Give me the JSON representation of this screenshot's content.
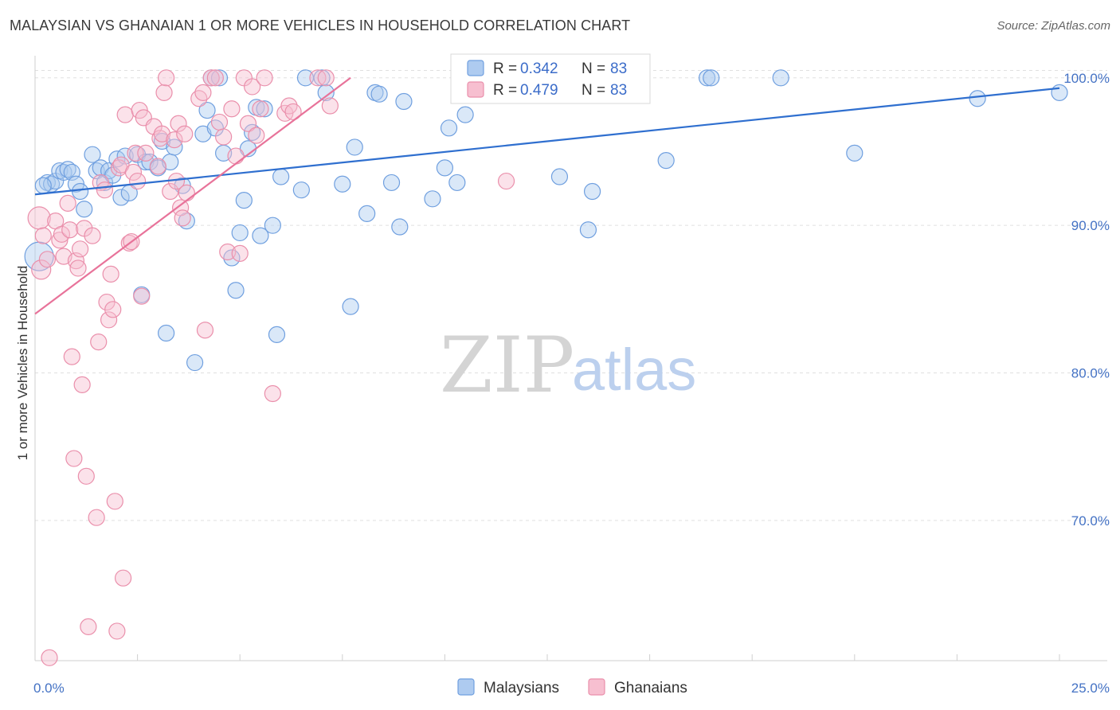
{
  "title": "MALAYSIAN VS GHANAIAN 1 OR MORE VEHICLES IN HOUSEHOLD CORRELATION CHART",
  "source": "Source: ZipAtlas.com",
  "watermark": {
    "zip": "ZIP",
    "atlas": "atlas"
  },
  "colors": {
    "malaysian_fill": "#aecbf0",
    "malaysian_stroke": "#6f9fdf",
    "malaysian_line": "#2f6fcf",
    "ghanaian_fill": "#f7bfd0",
    "ghanaian_stroke": "#ea8fab",
    "ghanaian_line": "#e8739a",
    "tick_text": "#4472c4",
    "grid": "#e0e0e0"
  },
  "legend": {
    "rows": [
      {
        "r_label": "R = ",
        "r_value": "0.342",
        "n_label": "N = ",
        "n_value": "83"
      },
      {
        "r_label": "R = ",
        "r_value": "0.479",
        "n_label": "N = ",
        "n_value": "83"
      }
    ],
    "series_labels": [
      "Malaysians",
      "Ghanaians"
    ]
  },
  "chart_data": {
    "type": "scatter",
    "title": "MALAYSIAN VS GHANAIAN 1 OR MORE VEHICLES IN HOUSEHOLD CORRELATION CHART",
    "xlabel": "",
    "ylabel": "1 or more Vehicles in Household",
    "xlim": [
      0,
      25
    ],
    "ylim": [
      60.5,
      101.5
    ],
    "x_tick_labels": [
      "0.0%",
      "25.0%"
    ],
    "y_ticks": [
      70,
      80,
      90,
      100
    ],
    "y_tick_labels": [
      "70.0%",
      "80.0%",
      "90.0%",
      "100.0%"
    ],
    "grid": true,
    "series": [
      {
        "name": "Malaysians",
        "r": 0.342,
        "n": 83,
        "trendline": {
          "x": [
            0,
            25
          ],
          "y": [
            92.1,
            99.3
          ]
        },
        "points": [
          [
            0.1,
            87.9,
            18
          ],
          [
            0.3,
            92.9,
            10
          ],
          [
            0.4,
            92.8,
            10
          ],
          [
            0.5,
            93.0,
            10
          ],
          [
            0.6,
            93.7,
            10
          ],
          [
            0.7,
            93.6,
            10
          ],
          [
            0.8,
            93.8,
            10
          ],
          [
            0.9,
            93.6,
            10
          ],
          [
            1.0,
            92.8,
            10
          ],
          [
            1.1,
            92.3,
            10
          ],
          [
            1.2,
            91.1,
            10
          ],
          [
            1.4,
            94.8,
            10
          ],
          [
            1.5,
            93.7,
            10
          ],
          [
            1.6,
            93.9,
            10
          ],
          [
            1.7,
            92.9,
            10
          ],
          [
            1.8,
            93.7,
            10
          ],
          [
            1.9,
            93.4,
            10
          ],
          [
            2.0,
            94.5,
            10
          ],
          [
            2.1,
            91.9,
            10
          ],
          [
            2.2,
            94.7,
            10
          ],
          [
            2.3,
            92.2,
            10
          ],
          [
            2.5,
            94.8,
            10
          ],
          [
            2.6,
            85.3,
            10
          ],
          [
            2.7,
            94.3,
            10
          ],
          [
            2.8,
            94.3,
            10
          ],
          [
            3.0,
            93.9,
            10
          ],
          [
            3.1,
            95.7,
            10
          ],
          [
            3.2,
            82.7,
            10
          ],
          [
            3.3,
            94.3,
            10
          ],
          [
            3.4,
            95.3,
            10
          ],
          [
            3.6,
            92.7,
            10
          ],
          [
            3.7,
            90.3,
            10
          ],
          [
            3.9,
            80.7,
            10
          ],
          [
            4.1,
            96.2,
            10
          ],
          [
            4.2,
            97.8,
            10
          ],
          [
            4.3,
            100.0,
            10
          ],
          [
            4.4,
            96.6,
            10
          ],
          [
            4.5,
            100.0,
            10
          ],
          [
            4.6,
            94.9,
            10
          ],
          [
            4.8,
            87.8,
            10
          ],
          [
            4.9,
            85.6,
            10
          ],
          [
            5.0,
            89.5,
            10
          ],
          [
            5.1,
            91.7,
            10
          ],
          [
            5.2,
            95.2,
            10
          ],
          [
            5.3,
            96.3,
            10
          ],
          [
            5.4,
            98.0,
            10
          ],
          [
            5.5,
            89.3,
            10
          ],
          [
            5.6,
            97.9,
            10
          ],
          [
            5.8,
            90.0,
            10
          ],
          [
            5.9,
            82.6,
            10
          ],
          [
            6.0,
            93.3,
            10
          ],
          [
            6.5,
            92.4,
            10
          ],
          [
            6.6,
            100.0,
            10
          ],
          [
            7.0,
            100.0,
            10
          ],
          [
            7.1,
            99.0,
            10
          ],
          [
            7.5,
            92.8,
            10
          ],
          [
            7.7,
            84.5,
            10
          ],
          [
            7.8,
            95.3,
            10
          ],
          [
            8.1,
            90.8,
            10
          ],
          [
            8.3,
            99.0,
            10
          ],
          [
            8.4,
            98.9,
            10
          ],
          [
            8.7,
            92.9,
            10
          ],
          [
            8.9,
            89.9,
            10
          ],
          [
            9.0,
            98.4,
            10
          ],
          [
            9.7,
            91.8,
            10
          ],
          [
            10.0,
            93.9,
            10
          ],
          [
            10.1,
            96.6,
            10
          ],
          [
            10.3,
            92.9,
            10
          ],
          [
            10.5,
            97.5,
            10
          ],
          [
            10.6,
            100.0,
            10
          ],
          [
            11.5,
            100.0,
            10
          ],
          [
            12.8,
            93.3,
            10
          ],
          [
            13.5,
            89.7,
            10
          ],
          [
            13.6,
            92.3,
            10
          ],
          [
            14.7,
            100.0,
            10
          ],
          [
            15.4,
            94.4,
            10
          ],
          [
            16.4,
            100.0,
            10
          ],
          [
            16.5,
            100.0,
            10
          ],
          [
            18.2,
            100.0,
            10
          ],
          [
            20.0,
            94.9,
            10
          ],
          [
            23.0,
            98.6,
            10
          ],
          [
            25.0,
            99.0,
            10
          ],
          [
            0.2,
            92.7,
            10
          ]
        ]
      },
      {
        "name": "Ghanaians",
        "r": 0.479,
        "n": 83,
        "trendline": {
          "x": [
            0,
            7.7
          ],
          "y": [
            84.0,
            100.0
          ]
        },
        "points": [
          [
            0.1,
            90.5,
            14
          ],
          [
            0.15,
            87.0,
            12
          ],
          [
            0.2,
            89.3,
            10
          ],
          [
            0.3,
            87.7,
            10
          ],
          [
            0.35,
            60.7,
            10
          ],
          [
            0.5,
            90.3,
            10
          ],
          [
            0.6,
            89.0,
            10
          ],
          [
            0.65,
            89.4,
            10
          ],
          [
            0.7,
            87.9,
            10
          ],
          [
            0.8,
            91.5,
            10
          ],
          [
            0.85,
            89.7,
            10
          ],
          [
            0.9,
            81.1,
            10
          ],
          [
            0.95,
            74.2,
            10
          ],
          [
            1.0,
            87.6,
            10
          ],
          [
            1.05,
            87.1,
            10
          ],
          [
            1.1,
            88.4,
            10
          ],
          [
            1.15,
            79.2,
            10
          ],
          [
            1.2,
            89.8,
            10
          ],
          [
            1.25,
            73.0,
            10
          ],
          [
            1.3,
            62.8,
            10
          ],
          [
            1.4,
            89.3,
            10
          ],
          [
            1.5,
            70.2,
            10
          ],
          [
            1.55,
            82.1,
            10
          ],
          [
            1.6,
            92.9,
            10
          ],
          [
            1.7,
            92.4,
            10
          ],
          [
            1.75,
            84.8,
            10
          ],
          [
            1.8,
            83.6,
            10
          ],
          [
            1.85,
            86.7,
            10
          ],
          [
            1.9,
            84.3,
            10
          ],
          [
            1.95,
            71.3,
            10
          ],
          [
            2.0,
            62.5,
            10
          ],
          [
            2.05,
            93.9,
            10
          ],
          [
            2.1,
            94.1,
            10
          ],
          [
            2.15,
            66.1,
            10
          ],
          [
            2.2,
            97.5,
            10
          ],
          [
            2.3,
            88.8,
            10
          ],
          [
            2.35,
            88.9,
            10
          ],
          [
            2.4,
            93.6,
            10
          ],
          [
            2.45,
            94.9,
            10
          ],
          [
            2.5,
            93.0,
            10
          ],
          [
            2.55,
            97.8,
            10
          ],
          [
            2.6,
            85.2,
            10
          ],
          [
            2.65,
            97.3,
            10
          ],
          [
            2.7,
            94.9,
            10
          ],
          [
            2.9,
            96.7,
            10
          ],
          [
            3.0,
            94.0,
            10
          ],
          [
            3.05,
            95.9,
            10
          ],
          [
            3.1,
            96.2,
            10
          ],
          [
            3.15,
            99.0,
            10
          ],
          [
            3.2,
            100.0,
            10
          ],
          [
            3.3,
            92.3,
            10
          ],
          [
            3.4,
            95.8,
            10
          ],
          [
            3.45,
            93.0,
            10
          ],
          [
            3.5,
            96.9,
            10
          ],
          [
            3.55,
            91.2,
            10
          ],
          [
            3.6,
            90.5,
            10
          ],
          [
            3.65,
            96.2,
            10
          ],
          [
            3.7,
            92.2,
            10
          ],
          [
            4.0,
            98.6,
            10
          ],
          [
            4.1,
            99.0,
            10
          ],
          [
            4.15,
            82.9,
            10
          ],
          [
            4.3,
            100.0,
            10
          ],
          [
            4.4,
            100.0,
            10
          ],
          [
            4.5,
            97.0,
            10
          ],
          [
            4.6,
            96.0,
            10
          ],
          [
            4.7,
            88.2,
            10
          ],
          [
            4.8,
            97.9,
            10
          ],
          [
            4.9,
            94.7,
            10
          ],
          [
            5.0,
            88.1,
            10
          ],
          [
            5.1,
            100.0,
            10
          ],
          [
            5.2,
            96.9,
            10
          ],
          [
            5.3,
            99.4,
            10
          ],
          [
            5.4,
            96.1,
            10
          ],
          [
            5.5,
            97.9,
            10
          ],
          [
            5.6,
            100.0,
            10
          ],
          [
            5.8,
            78.6,
            10
          ],
          [
            6.1,
            97.6,
            10
          ],
          [
            6.2,
            98.1,
            10
          ],
          [
            6.3,
            97.7,
            10
          ],
          [
            6.9,
            100.0,
            10
          ],
          [
            7.1,
            100.0,
            10
          ],
          [
            7.2,
            98.1,
            10
          ],
          [
            11.5,
            93.0,
            10
          ]
        ]
      }
    ]
  }
}
